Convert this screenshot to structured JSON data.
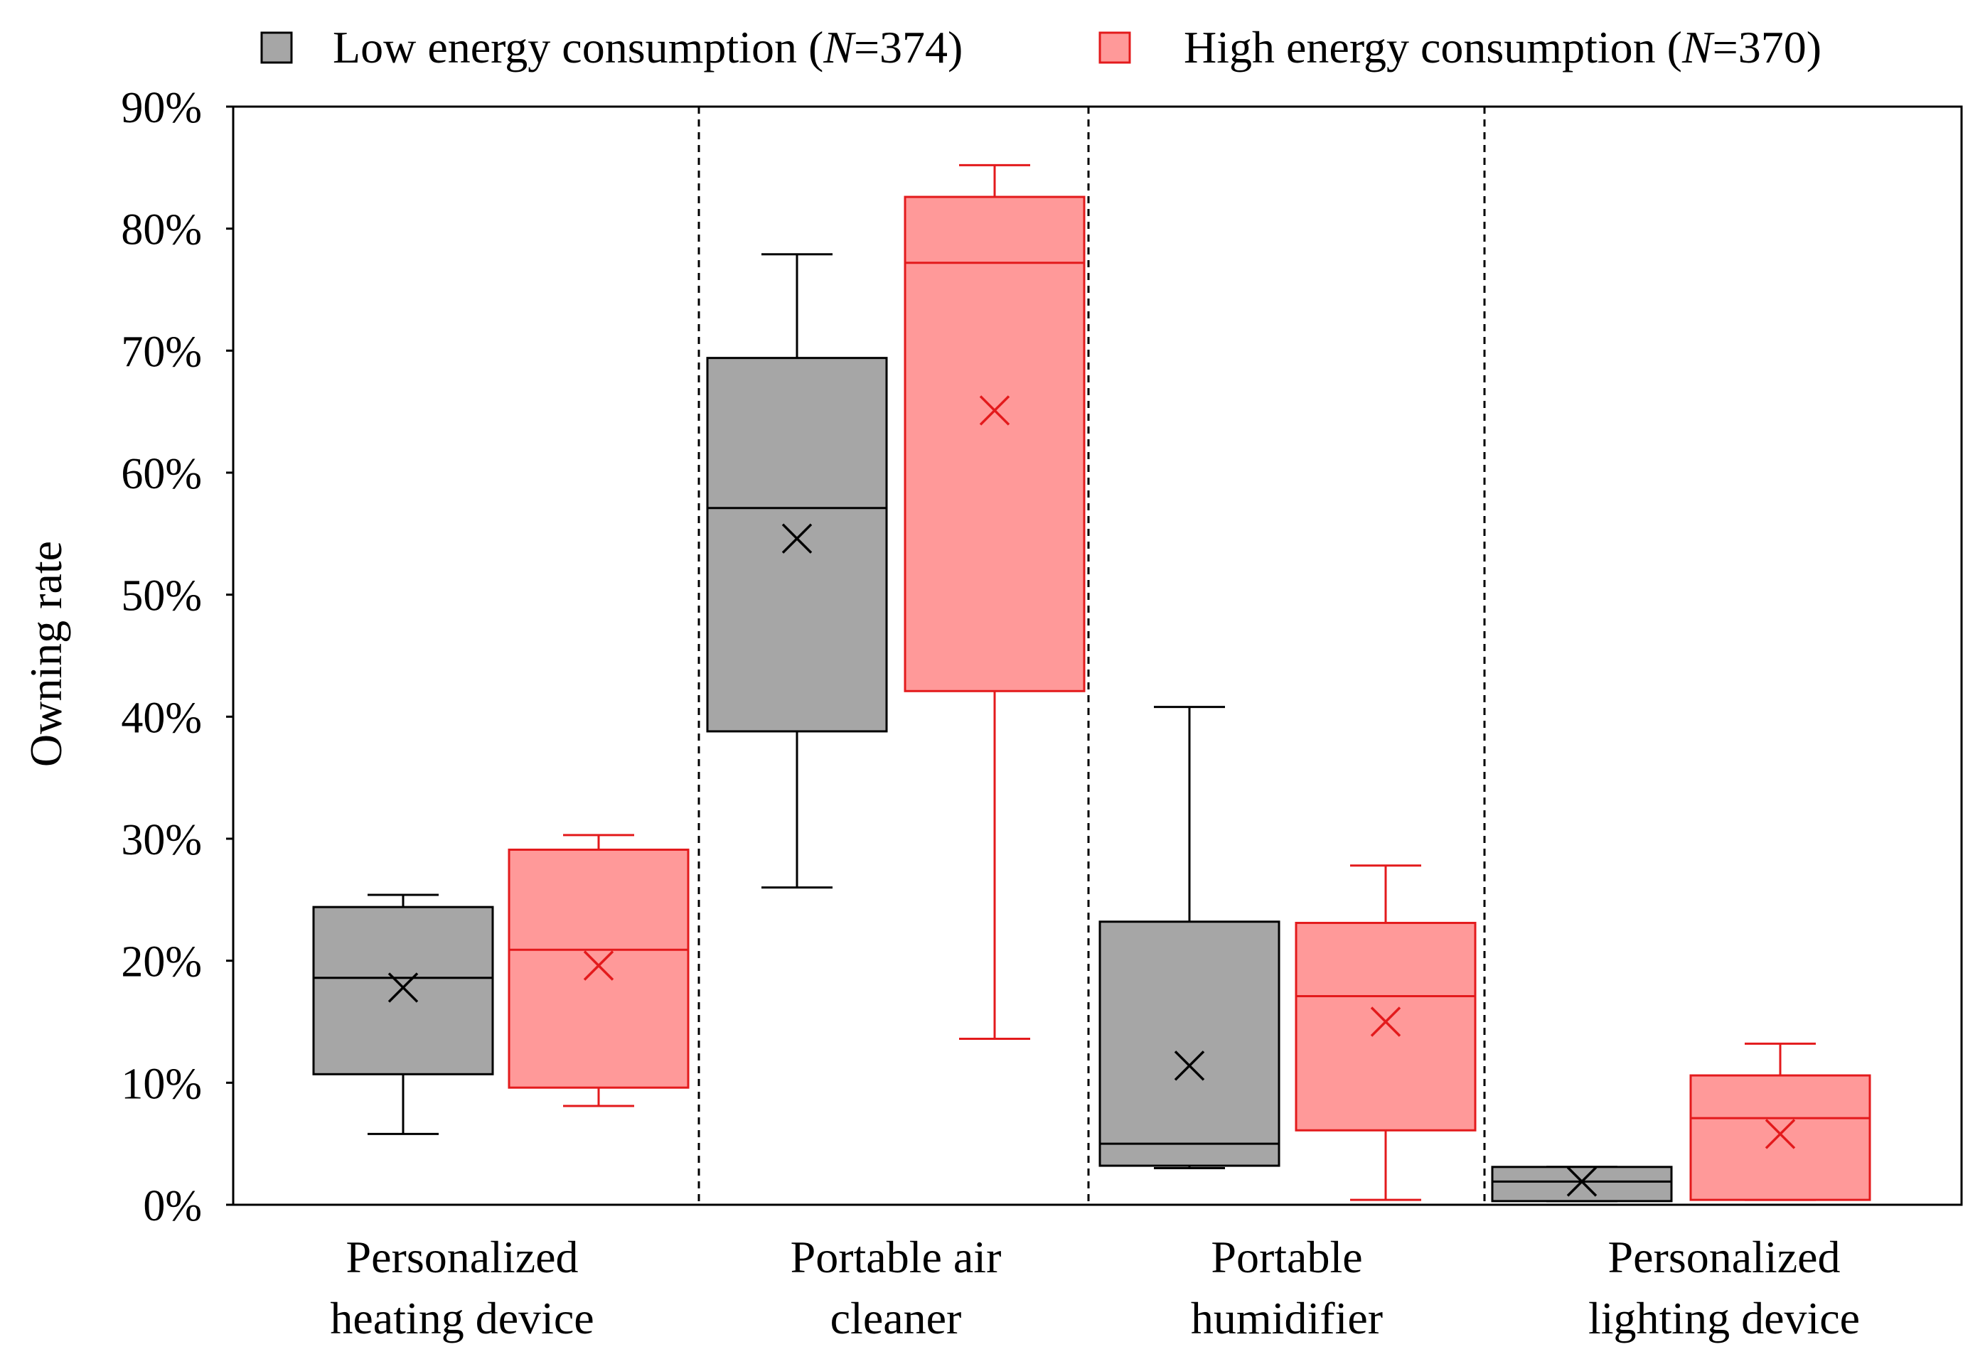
{
  "chart_data": {
    "type": "box",
    "ylabel": "Owning rate",
    "xlabel": "",
    "ylim": [
      0,
      90
    ],
    "y_ticks": [
      0,
      10,
      20,
      30,
      40,
      50,
      60,
      70,
      80,
      90
    ],
    "y_tick_labels": [
      "0%",
      "10%",
      "20%",
      "30%",
      "40%",
      "50%",
      "60%",
      "70%",
      "80%",
      "90%"
    ],
    "grid": false,
    "legend_position": "top",
    "categories": [
      {
        "line1": "Personalized",
        "line2": "heating device"
      },
      {
        "line1": "Portable air",
        "line2": "cleaner"
      },
      {
        "line1": "Portable",
        "line2": "humidifier"
      },
      {
        "line1": "Personalized",
        "line2": "lighting device"
      }
    ],
    "series": [
      {
        "name": "Low energy consumption",
        "legend_prefix": "Low energy consumption (",
        "legend_n_symbol": "N",
        "legend_suffix": "=374)",
        "color_fill": "#a6a6a6",
        "color_stroke": "#000000",
        "boxes": [
          {
            "min": 5.8,
            "q1": 10.7,
            "median": 18.6,
            "q3": 24.4,
            "max": 25.4,
            "mean": 17.8
          },
          {
            "min": 26.0,
            "q1": 38.8,
            "median": 57.1,
            "q3": 69.4,
            "max": 77.9,
            "mean": 54.6
          },
          {
            "min": 3.0,
            "q1": 3.2,
            "median": 5.0,
            "q3": 23.2,
            "max": 40.8,
            "mean": 11.4
          },
          {
            "min": 0.3,
            "q1": 0.3,
            "median": 1.9,
            "q3": 3.1,
            "max": 3.1,
            "mean": 1.9
          }
        ]
      },
      {
        "name": "High energy consumption",
        "legend_prefix": "High energy consumption (",
        "legend_n_symbol": "N",
        "legend_suffix": "=370)",
        "color_fill": "#ff9999",
        "color_stroke": "#e31a1c",
        "boxes": [
          {
            "min": 8.1,
            "q1": 9.6,
            "median": 20.9,
            "q3": 29.1,
            "max": 30.3,
            "mean": 19.6
          },
          {
            "min": 13.6,
            "q1": 42.1,
            "median": 77.2,
            "q3": 82.6,
            "max": 85.2,
            "mean": 65.1
          },
          {
            "min": 0.4,
            "q1": 6.1,
            "median": 17.1,
            "q3": 23.1,
            "max": 27.8,
            "mean": 15.0
          },
          {
            "min": 0.4,
            "q1": 0.4,
            "median": 7.1,
            "q3": 10.6,
            "max": 13.2,
            "mean": 5.8
          }
        ]
      }
    ]
  }
}
